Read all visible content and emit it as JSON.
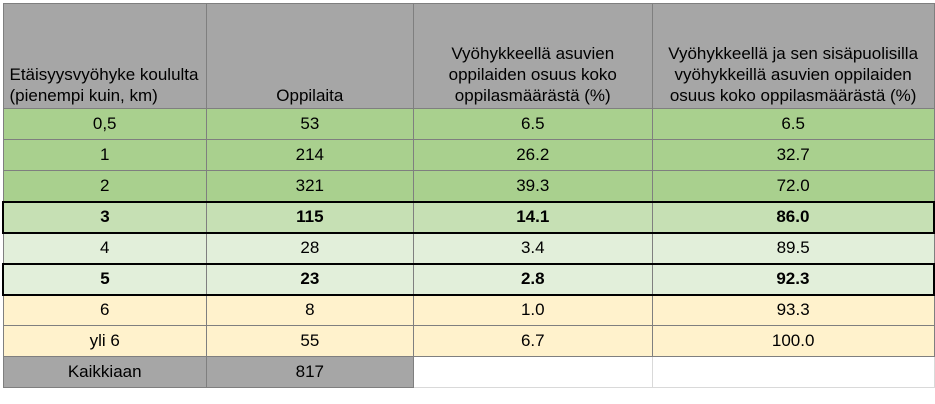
{
  "headers": [
    "Etäisyysvyöhyke koululta (pienempi kuin, km)",
    "Oppilaita",
    "Vyöhykkeellä asuvien oppilaiden osuus koko oppilasmäärästä (%)",
    "Vyöhykkeellä ja sen sisäpuolisilla vyöhykkeillä asuvien oppilaiden osuus koko oppilasmäärästä (%)"
  ],
  "rows": [
    {
      "zone": "0,5",
      "students": "53",
      "share": "6.5",
      "cumulative": "6.5"
    },
    {
      "zone": "1",
      "students": "214",
      "share": "26.2",
      "cumulative": "32.7"
    },
    {
      "zone": "2",
      "students": "321",
      "share": "39.3",
      "cumulative": "72.0"
    },
    {
      "zone": "3",
      "students": "115",
      "share": "14.1",
      "cumulative": "86.0"
    },
    {
      "zone": "4",
      "students": "28",
      "share": "3.4",
      "cumulative": "89.5"
    },
    {
      "zone": "5",
      "students": "23",
      "share": "2.8",
      "cumulative": "92.3"
    },
    {
      "zone": "6",
      "students": "8",
      "share": "1.0",
      "cumulative": "93.3"
    },
    {
      "zone": "yli 6",
      "students": "55",
      "share": "6.7",
      "cumulative": "100.0"
    }
  ],
  "total": {
    "label": "Kaikkiaan",
    "students": "817"
  },
  "colors": {
    "header": "#a6a6a6",
    "green_dark": "#a9d08e",
    "green_mid": "#c6e0b4",
    "green_light": "#e2efda",
    "yellow": "#fff2cc"
  }
}
